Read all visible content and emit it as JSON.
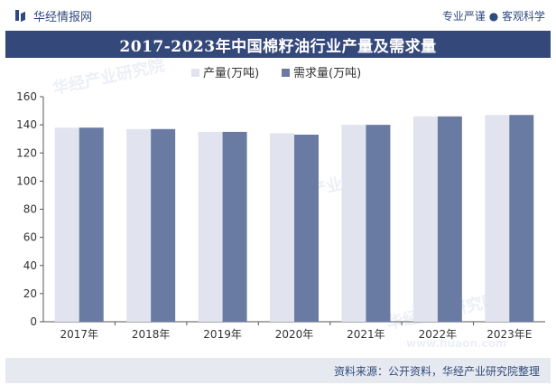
{
  "header": {
    "brand": "华经情报网",
    "slogan": "专业严谨 ● 客观科学"
  },
  "watermark": {
    "cn": "华经产业研究院",
    "url": "www.huaon.com"
  },
  "footer": {
    "source": "资料来源：公开资料，华经产业研究院整理"
  },
  "colors": {
    "production": "#e1e4ee",
    "demand": "#6a7ba3",
    "title_bg": "#34487a",
    "brand": "#2f4a7d"
  },
  "chart_data": {
    "type": "bar",
    "title": "2017-2023年中国棉籽油行业产量及需求量",
    "categories": [
      "2017年",
      "2018年",
      "2019年",
      "2020年",
      "2021年",
      "2022年",
      "2023年E"
    ],
    "series": [
      {
        "name": "产量(万吨)",
        "values": [
          138,
          137,
          135,
          134,
          140,
          146,
          147
        ]
      },
      {
        "name": "需求量(万吨)",
        "values": [
          138,
          137,
          135,
          133,
          140,
          146,
          147
        ]
      }
    ],
    "ylim": [
      0,
      160
    ],
    "yticks": [
      0,
      20,
      40,
      60,
      80,
      100,
      120,
      140,
      160
    ],
    "xlabel": "",
    "ylabel": "",
    "legend": "top-center",
    "grid": false
  }
}
